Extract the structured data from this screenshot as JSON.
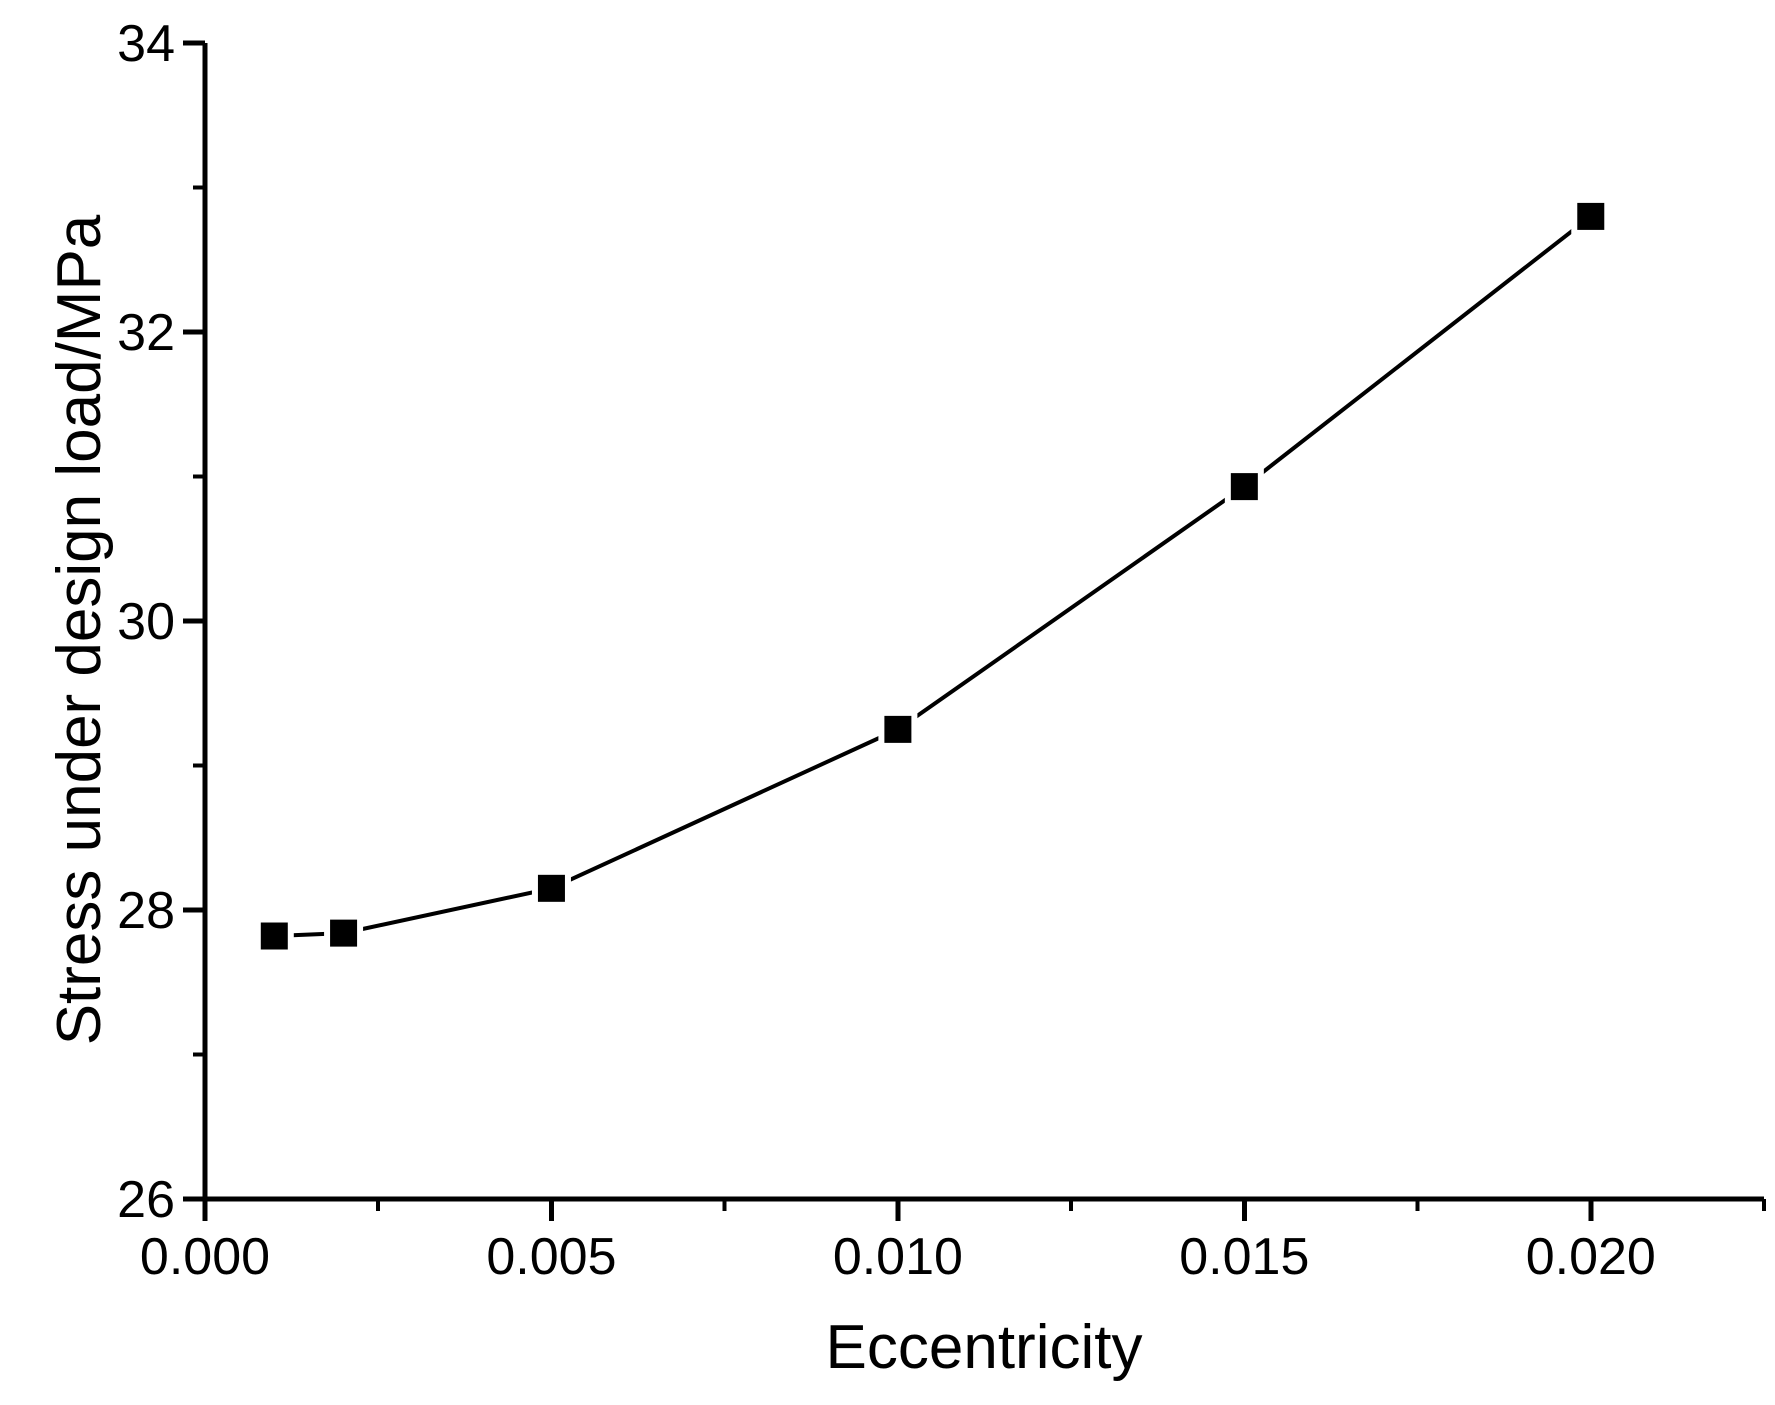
{
  "figure": {
    "background": "#ffffff",
    "ink_color": "#000000"
  },
  "chart_data": {
    "type": "line",
    "title": "",
    "xlabel": "Eccentricity",
    "ylabel": "Stress under design load/MPa",
    "xlim": [
      0,
      0.0225
    ],
    "ylim": [
      26,
      34
    ],
    "grid": false,
    "legend": "none",
    "x_ticks": {
      "major": [
        0,
        0.005,
        0.01,
        0.015,
        0.02
      ],
      "labels": [
        "0.000",
        "0.005",
        "0.010",
        "0.015",
        "0.020"
      ],
      "minor": [
        0.0025,
        0.0075,
        0.0125,
        0.0175,
        0.0225
      ]
    },
    "y_ticks": {
      "major": [
        26,
        28,
        30,
        32,
        34
      ],
      "labels": [
        "26",
        "28",
        "30",
        "32",
        "34"
      ],
      "minor": [
        27,
        29,
        31,
        33
      ]
    },
    "series": [
      {
        "marker": "filled-square",
        "line_color": "#000000",
        "marker_color": "#000000",
        "x": [
          0.001,
          0.002,
          0.005,
          0.01,
          0.015,
          0.02
        ],
        "y": [
          27.82,
          27.84,
          28.15,
          29.25,
          30.93,
          32.8
        ]
      }
    ]
  }
}
